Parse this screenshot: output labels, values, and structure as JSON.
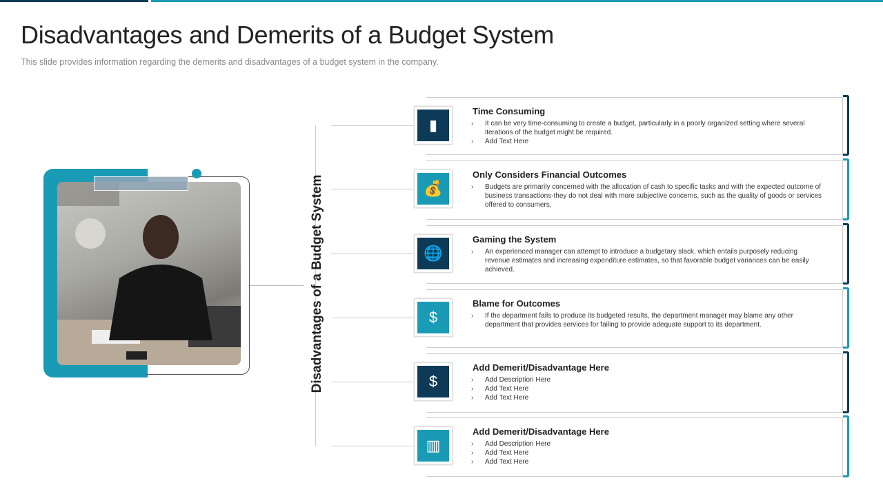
{
  "title": "Disadvantages and Demerits of a Budget System",
  "subtitle": "This slide provides  information  regarding  the demerits and disadvantages  of a budget system in the company.",
  "vertical_label": "Disadvantages of a Budget System",
  "colors": {
    "dark": "#0d3a56",
    "teal": "#1a9bb5"
  },
  "items": [
    {
      "title": "Time Consuming",
      "icon": "gamepad-chart-icon",
      "color": "dark",
      "bullets": [
        "It can be very time-consuming to create a budget, particularly in a poorly organized setting where several iterations of the budget might be required.",
        "Add Text Here"
      ]
    },
    {
      "title": "Only Considers  Financial Outcomes",
      "icon": "money-bag-gear-icon",
      "color": "teal",
      "bullets": [
        "Budgets are primarily concerned with the allocation of cash to specific tasks and with the expected outcome of business transactions-they do not deal with more subjective concerns, such as the quality of goods or services offered to consumers."
      ]
    },
    {
      "title": "Gaming the System",
      "icon": "globe-phone-icon",
      "color": "dark",
      "bullets": [
        "An experienced manager can attempt to introduce a budgetary slack, which entails purposely reducing revenue estimates and increasing expenditure estimates, so that favorable budget variances can be easily achieved."
      ]
    },
    {
      "title": "Blame for Outcomes",
      "icon": "dollar-arrows-icon",
      "color": "teal",
      "bullets": [
        "If the department fails to produce its budgeted results, the department manager may blame any other department that provides services for failing to provide adequate support to its department."
      ]
    },
    {
      "title": "Add Demerit/Disadvantage Here",
      "icon": "dollar-bar-chart-icon",
      "color": "dark",
      "bullets": [
        "Add Description Here",
        "Add Text Here",
        "Add Text Here"
      ]
    },
    {
      "title": "Add Demerit/Disadvantage Here",
      "icon": "bar-chart-icon",
      "color": "teal",
      "bullets": [
        "Add Description Here",
        "Add Text Here",
        "Add Text Here"
      ]
    }
  ]
}
